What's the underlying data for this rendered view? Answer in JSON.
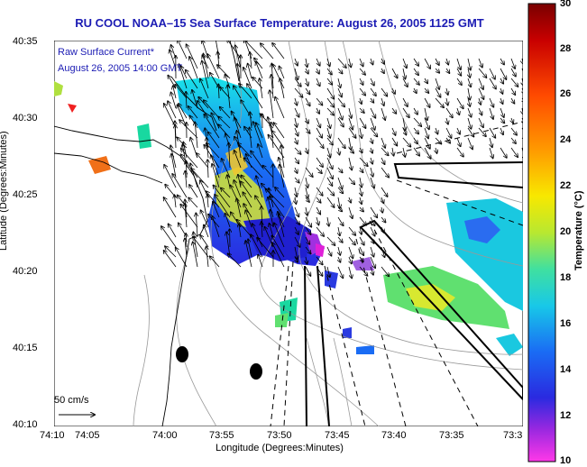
{
  "title": "RU COOL  NOAA–15  Sea Surface Temperature:  August 26, 2005 1125 GMT",
  "annotation": {
    "line1": "Raw Surface Current*",
    "line2": "August 26, 2005 14:00 GMT"
  },
  "scale_label": "50 cm/s",
  "axes": {
    "ylabel": "Latitude (Degrees:Minutes)",
    "xlabel": "Longitude (Degrees:Minutes)",
    "yticks": [
      "40:35",
      "40:30",
      "40:25",
      "40:20",
      "40:15",
      "40:10"
    ],
    "xticks": [
      "74:10",
      "74:05",
      "74:00",
      "73:55",
      "73:50",
      "73:45",
      "73:40",
      "73:35",
      "73:3"
    ]
  },
  "colorbar": {
    "label": "Temperature (°C)",
    "ticks": [
      "30",
      "28",
      "26",
      "24",
      "22",
      "20",
      "18",
      "16",
      "14",
      "12",
      "10"
    ],
    "min": 10,
    "max": 30
  },
  "colors": {
    "title": "#1c1cb4",
    "annotation": "#1c1cb4"
  }
}
